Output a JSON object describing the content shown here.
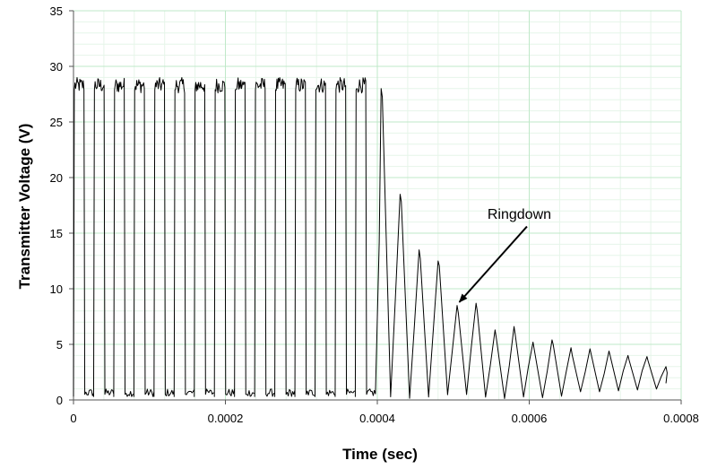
{
  "chart_data": {
    "type": "line",
    "xlabel": "Time (sec)",
    "ylabel": "Transmitter Voltage (V)",
    "xlim": [
      0,
      0.0008
    ],
    "ylim": [
      0,
      35
    ],
    "xticks": [
      0,
      0.0002,
      0.0004,
      0.0006,
      0.0008
    ],
    "xtick_labels": [
      "0",
      "0.0002",
      "0.0004",
      "0.0006",
      "0.0008"
    ],
    "yticks": [
      0,
      5,
      10,
      15,
      20,
      25,
      30,
      35
    ],
    "ytick_labels": [
      "0",
      "5",
      "10",
      "15",
      "20",
      "25",
      "30",
      "35"
    ],
    "grid": true,
    "legend": "none",
    "series": [
      {
        "line_color": "#000000",
        "drive": {
          "t_start": 0,
          "t_end": 0.0004,
          "period": 2.65e-05,
          "high": 28.3,
          "low": 0.3
        },
        "ringdown": {
          "t_start": 0.0004,
          "t_end": 0.00078,
          "period": 2.65e-05,
          "envelope_peaks": [
            [
              0.000405,
              28.0
            ],
            [
              0.00043,
              18.5
            ],
            [
              0.000455,
              13.5
            ],
            [
              0.00048,
              12.5
            ],
            [
              0.000505,
              8.5
            ],
            [
              0.00053,
              8.7
            ],
            [
              0.000555,
              6.3
            ],
            [
              0.00058,
              6.6
            ],
            [
              0.000605,
              5.2
            ],
            [
              0.00063,
              5.4
            ],
            [
              0.000655,
              4.7
            ],
            [
              0.00068,
              4.6
            ],
            [
              0.000705,
              4.4
            ],
            [
              0.00073,
              4.0
            ],
            [
              0.000755,
              3.9
            ],
            [
              0.00078,
              3.0
            ]
          ],
          "trough_min": 0.1,
          "end_level": 1.5
        }
      }
    ],
    "annotations": [
      {
        "text": "Ringdown",
        "text_at": [
          0.000545,
          16.3
        ],
        "arrow_from": [
          0.000597,
          15.6
        ],
        "arrow_to": [
          0.000508,
          8.8
        ]
      }
    ]
  }
}
